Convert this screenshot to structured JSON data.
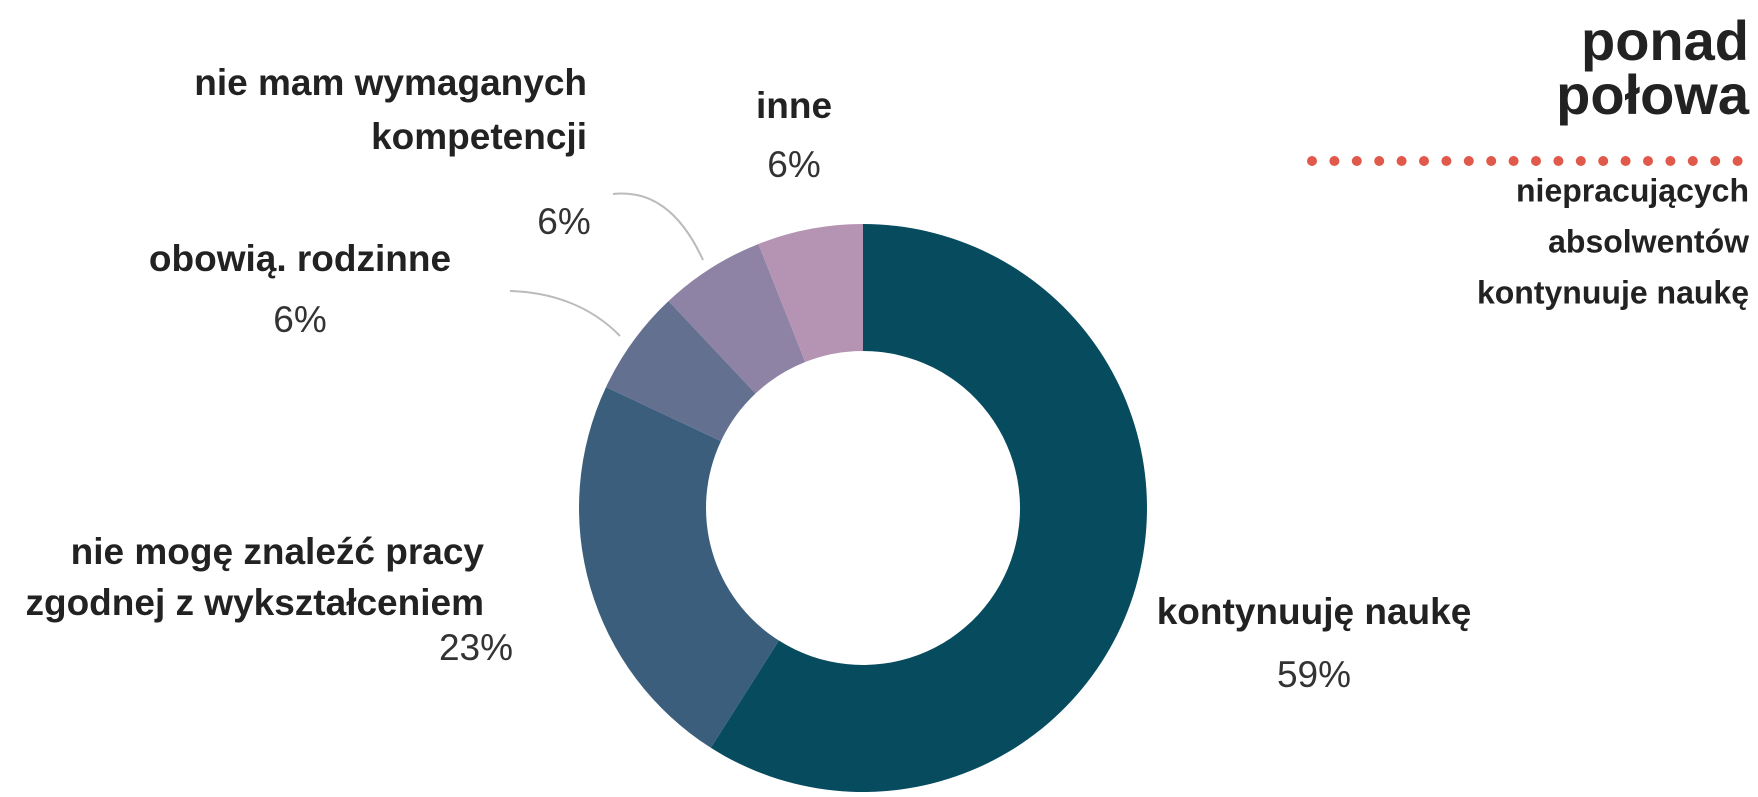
{
  "chart_data": {
    "type": "donut",
    "categories": [
      [
        "kontynuuję naukę"
      ],
      [
        "nie mogę znaleźć pracy",
        "zgodnej z wykształceniem"
      ],
      [
        "obowią. rodzinne"
      ],
      [
        "nie mam wymaganych",
        "kompetencji"
      ],
      [
        "inne"
      ]
    ],
    "values": [
      59,
      23,
      6,
      6,
      6
    ],
    "value_labels": [
      "59%",
      "23%",
      "6%",
      "6%",
      "6%"
    ],
    "colors": [
      "#074b5f",
      "#3b5e7c",
      "#63708f",
      "#8e83a4",
      "#b594b3"
    ],
    "headline": [
      "ponad",
      "połowa"
    ],
    "subtitle": [
      "niepracujących",
      "absolwentów",
      "kontynuuje naukę"
    ]
  }
}
